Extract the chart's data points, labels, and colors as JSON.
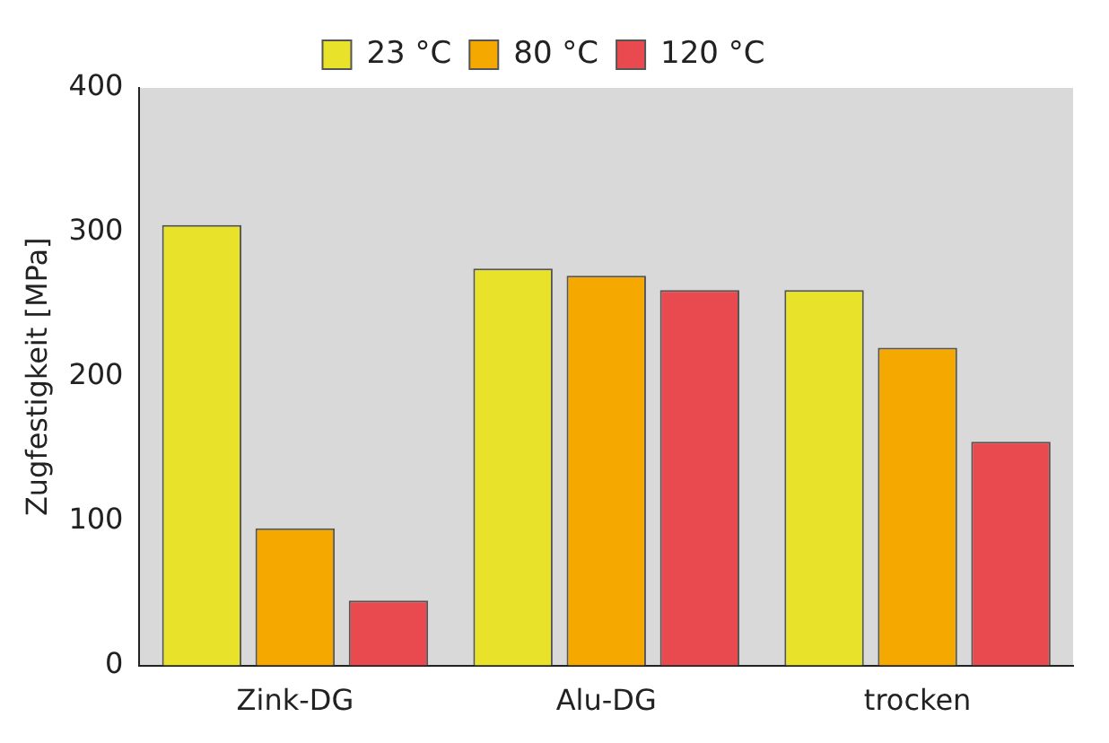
{
  "chart_data": {
    "type": "bar",
    "ylabel": "Zugfestigkeit [MPa]",
    "categories": [
      "Zink-DG",
      "Alu-DG",
      "trocken"
    ],
    "series": [
      {
        "name": "23 °C",
        "color": "#e8e22a",
        "values": [
          305,
          275,
          260
        ]
      },
      {
        "name": "80 °C",
        "color": "#f5a800",
        "values": [
          95,
          270,
          220
        ]
      },
      {
        "name": "120 °C",
        "color": "#e84a4f",
        "values": [
          45,
          260,
          155
        ]
      }
    ],
    "ylim": [
      0,
      400
    ],
    "yticks": [
      0,
      100,
      200,
      300,
      400
    ],
    "grid": false,
    "legend": "top"
  }
}
